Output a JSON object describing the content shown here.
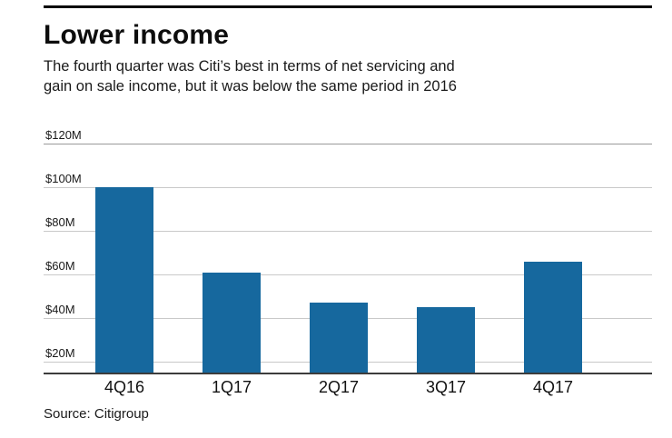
{
  "title": "Lower income",
  "subtitle_line1": "The fourth quarter was Citi’s best in terms of net servicing and",
  "subtitle_line2": "gain on sale income, but it was below the same period in 2016",
  "source": "Source: Citigroup",
  "colors": {
    "bar": "#16689e",
    "gridline": "#c9c9c9",
    "baseline": "#3c3c3c"
  },
  "chart_data": {
    "type": "bar",
    "title": "Lower income",
    "categories": [
      "4Q16",
      "1Q17",
      "2Q17",
      "3Q17",
      "4Q17"
    ],
    "values": [
      100,
      61,
      47,
      45,
      66
    ],
    "xlabel": "",
    "ylabel": "",
    "yticks": [
      120,
      100,
      80,
      60,
      40,
      20
    ],
    "ytick_labels": [
      "$120M",
      "$100M",
      "$80M",
      "$60M",
      "$40M",
      "$20M"
    ],
    "ylim": [
      15,
      120
    ],
    "grid": true,
    "legend": false
  }
}
